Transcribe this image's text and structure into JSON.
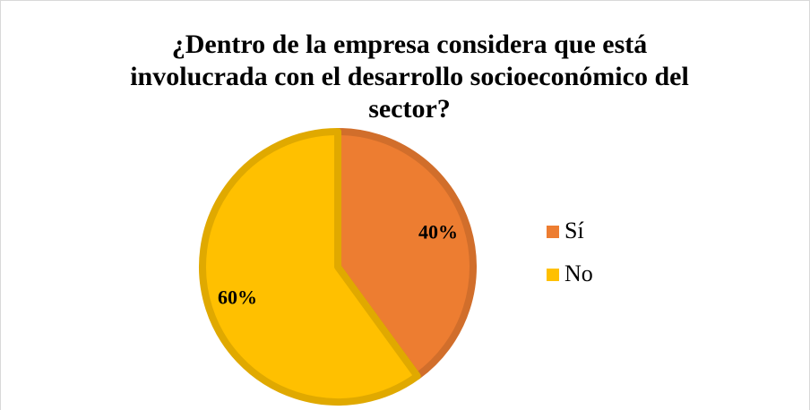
{
  "chart_data": {
    "type": "pie",
    "title": "¿Dentro de la empresa considera que está involucrada con el desarrollo socioeconómico del sector?",
    "categories": [
      "Sí",
      "No"
    ],
    "values": [
      40,
      60
    ],
    "value_labels": [
      "40%",
      "60%"
    ],
    "colors": [
      "#ed7d31",
      "#ffc000"
    ],
    "legend": "right"
  }
}
